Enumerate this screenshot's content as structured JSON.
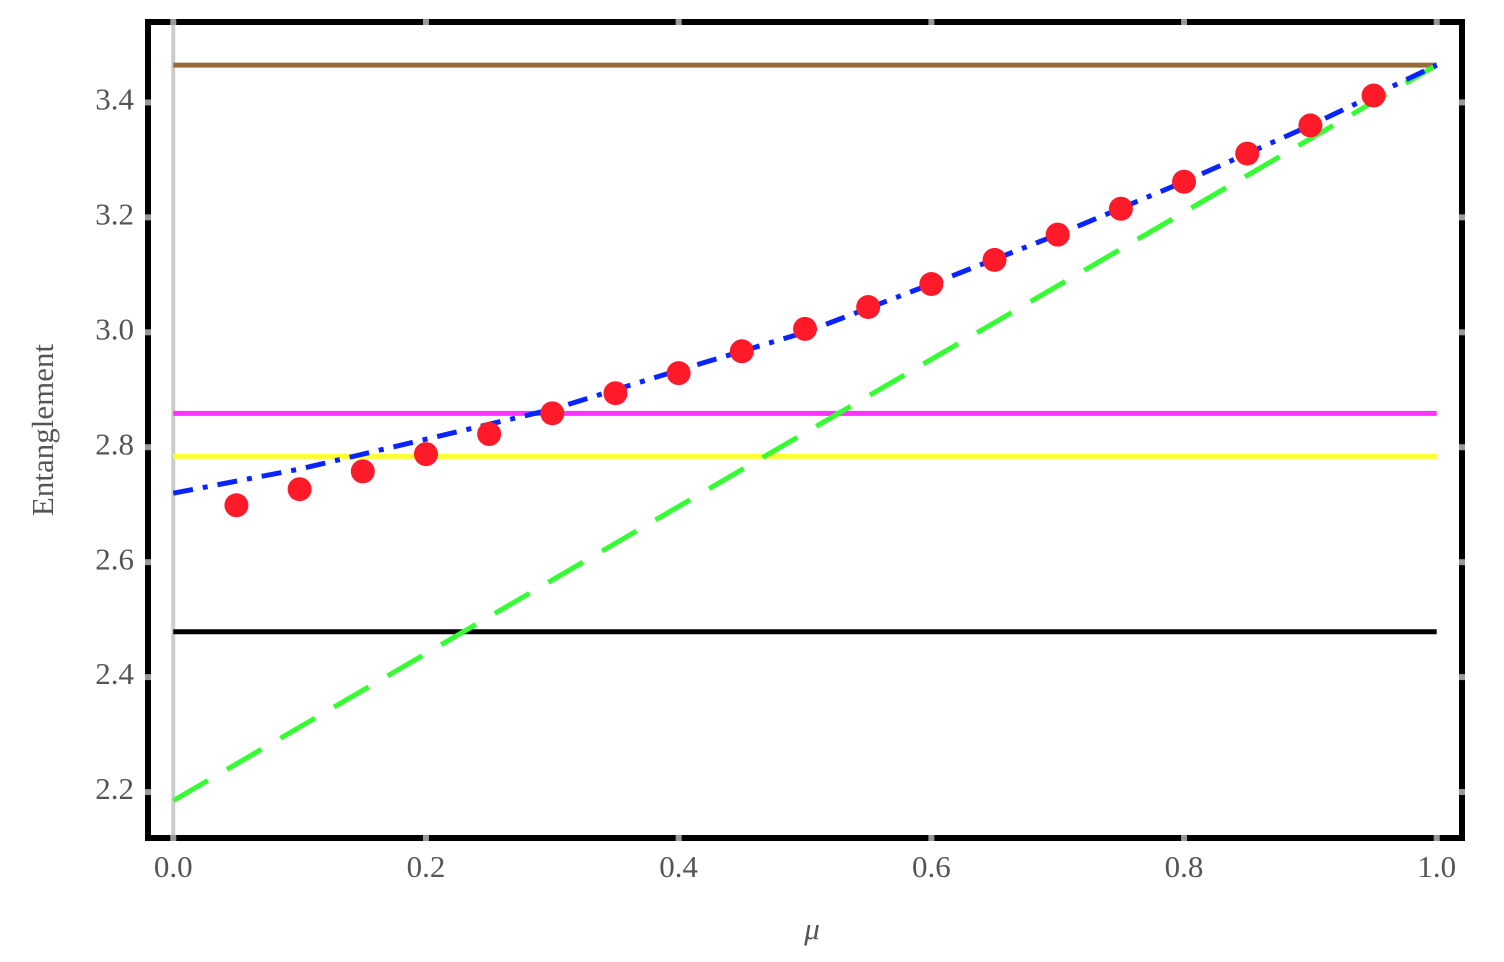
{
  "chart_data": {
    "type": "line",
    "xlabel": "μ",
    "ylabel": "Entanglement",
    "xlim": [
      -0.02,
      1.02
    ],
    "ylim": [
      2.12,
      3.54
    ],
    "xticks": [
      {
        "value": 0,
        "label": "0.0"
      },
      0.2,
      0.4,
      0.6,
      0.8,
      {
        "value": 1,
        "label": "1.0"
      }
    ],
    "yticks": [
      2.2,
      2.4,
      2.6,
      2.8,
      {
        "value": 3,
        "label": "3.0"
      },
      3.2,
      3.4
    ],
    "series": [
      {
        "color": "#9a6a3a",
        "style": "solid",
        "x": [
          0,
          1
        ],
        "values": [
          3.465,
          3.465
        ]
      },
      {
        "color": "#ff33ff",
        "style": "solid",
        "x": [
          0,
          1
        ],
        "values": [
          2.859,
          2.859
        ]
      },
      {
        "color": "#ffff33",
        "style": "solid",
        "x": [
          0,
          1
        ],
        "values": [
          2.784,
          2.784
        ]
      },
      {
        "color": "#000000",
        "style": "solid",
        "x": [
          0,
          1
        ],
        "values": [
          2.479,
          2.479
        ]
      },
      {
        "color": "#33ff33",
        "style": "dashed",
        "x": [
          0,
          1
        ],
        "values": [
          2.185,
          3.465
        ]
      },
      {
        "color": "#0a24ff",
        "style": "dotdash",
        "x": [
          0,
          0.1,
          0.2,
          0.3,
          0.4,
          0.5,
          0.6,
          0.7,
          0.8,
          0.9,
          1
        ],
        "values": [
          2.72,
          2.762,
          2.814,
          2.866,
          2.934,
          3.0,
          3.084,
          3.17,
          3.262,
          3.36,
          3.465
        ]
      },
      {
        "color": "#ff1a2a",
        "style": "markers",
        "x": [
          0.05,
          0.1,
          0.15,
          0.2,
          0.25,
          0.3,
          0.35,
          0.4,
          0.45,
          0.5,
          0.55,
          0.6,
          0.65,
          0.7,
          0.75,
          0.8,
          0.85,
          0.9,
          0.95
        ],
        "values": [
          2.699,
          2.727,
          2.758,
          2.788,
          2.823,
          2.859,
          2.894,
          2.929,
          2.967,
          3.006,
          3.044,
          3.084,
          3.126,
          3.17,
          3.215,
          3.262,
          3.311,
          3.36,
          3.412
        ]
      }
    ]
  }
}
